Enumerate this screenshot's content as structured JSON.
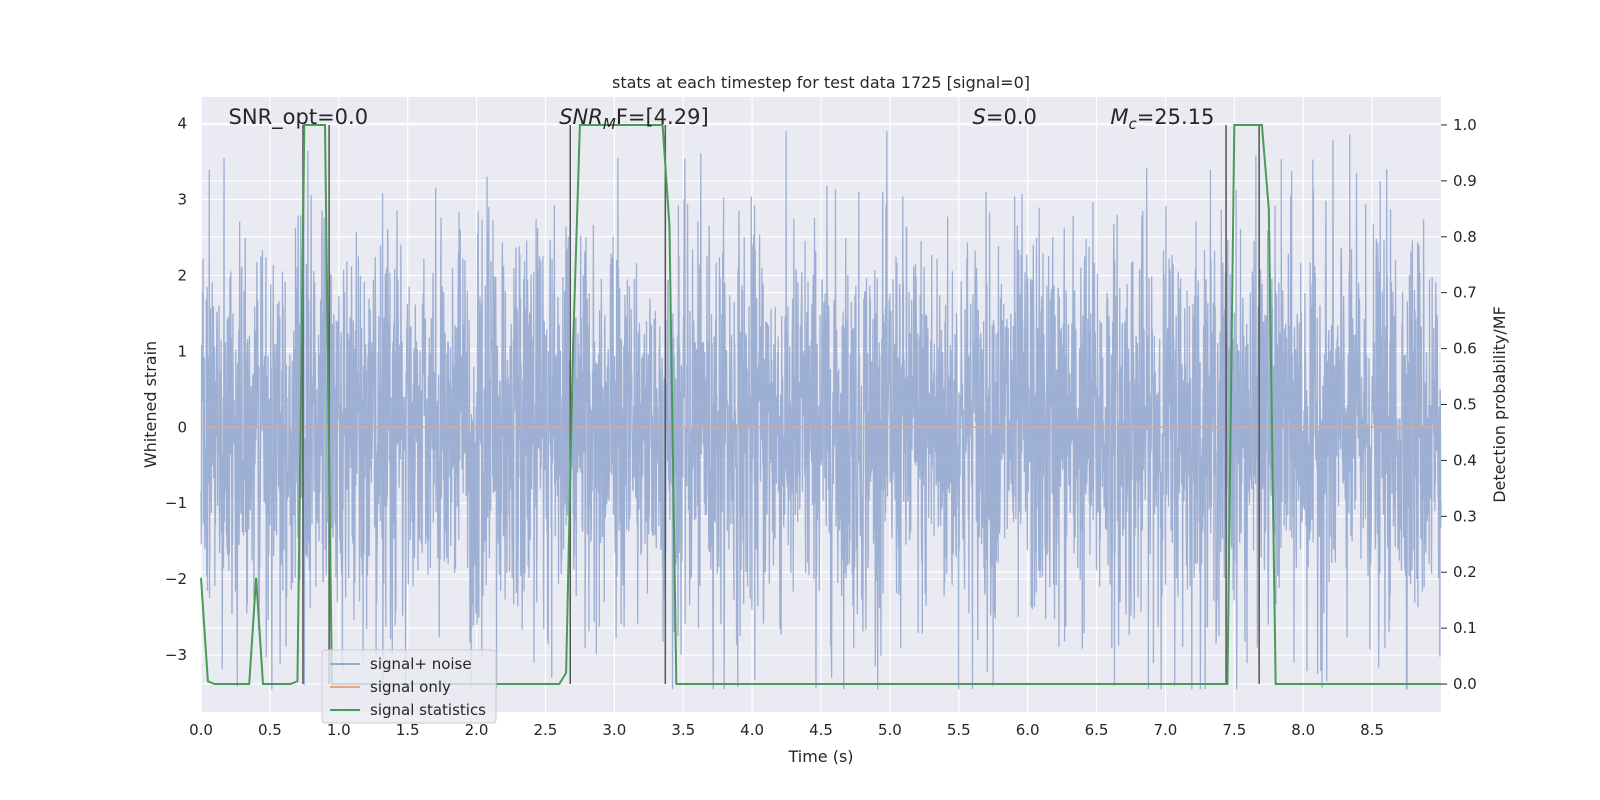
{
  "chart_data": {
    "type": "line",
    "title": "stats at each timestep for test data 1725 [signal=0]",
    "xlabel": "Time (s)",
    "ylabel": "Whitened strain",
    "y2label": "Detection probability/MF",
    "xlim": [
      0.0,
      9.0
    ],
    "ylim": [
      -3.75,
      4.35
    ],
    "y2lim": [
      -0.05,
      1.05
    ],
    "xticks": [
      0.0,
      0.5,
      1.0,
      1.5,
      2.0,
      2.5,
      3.0,
      3.5,
      4.0,
      4.5,
      5.0,
      5.5,
      6.0,
      6.5,
      7.0,
      7.5,
      8.0,
      8.5
    ],
    "yticks": [
      -3,
      -2,
      -1,
      0,
      1,
      2,
      3,
      4
    ],
    "y2ticks": [
      0.0,
      0.1,
      0.2,
      0.3,
      0.4,
      0.5,
      0.6,
      0.7,
      0.8,
      0.9,
      1.0
    ],
    "grid": true,
    "legend_position": "bottom-left",
    "annotations": [
      {
        "text": "SNR_opt=0.0",
        "x": 0.2
      },
      {
        "text": "SNR_MF=[4.29]",
        "x": 2.6,
        "math_parts": [
          "SNR",
          "M",
          "F=[4.29]"
        ]
      },
      {
        "text": "S=0.0",
        "x": 5.6,
        "math_parts": [
          "S",
          "",
          "=0.0"
        ]
      },
      {
        "text": "M_c=25.15",
        "x": 6.6,
        "math_parts": [
          "M",
          "c",
          "=25.15"
        ]
      }
    ],
    "series": [
      {
        "name": "signal+ noise",
        "color": "#95a9cf",
        "noise_amplitude_typical": 1.3,
        "noise_peaks": [
          3.85,
          3.55,
          -3.4,
          -3.4,
          3.38,
          3.35,
          -3.3,
          3.3
        ]
      },
      {
        "name": "signal only",
        "color": "#e8a385",
        "x": [
          0.0,
          9.0
        ],
        "values": [
          0.0,
          0.0
        ]
      },
      {
        "name": "signal statistics",
        "color": "#4a9a58",
        "axis": "right",
        "x": [
          0.0,
          0.05,
          0.1,
          0.15,
          0.2,
          0.25,
          0.3,
          0.35,
          0.4,
          0.45,
          0.5,
          0.55,
          0.6,
          0.65,
          0.7,
          0.75,
          0.8,
          0.85,
          0.9,
          0.95,
          1.0,
          1.05,
          1.1,
          2.6,
          2.65,
          2.7,
          2.75,
          2.8,
          3.35,
          3.4,
          3.45,
          3.5,
          3.55,
          7.45,
          7.5,
          7.55,
          7.7,
          7.75,
          7.8,
          7.85,
          9.0
        ],
        "values": [
          0.19,
          0.005,
          0.0,
          0.0,
          0.0,
          0.0,
          0.0,
          0.0,
          0.19,
          0.0,
          0.0,
          0.0,
          0.0,
          0.0,
          0.005,
          1.0,
          1.0,
          1.0,
          1.0,
          0.0,
          0.0,
          0.0,
          0.0,
          0.0,
          0.02,
          0.6,
          1.0,
          1.0,
          1.0,
          0.82,
          0.0,
          0.0,
          0.0,
          0.0,
          1.0,
          1.0,
          1.0,
          0.85,
          0.0,
          0.0,
          0.0
        ]
      }
    ],
    "vertical_markers_x": [
      0.74,
      0.93,
      2.68,
      3.37,
      7.44,
      7.68
    ]
  }
}
